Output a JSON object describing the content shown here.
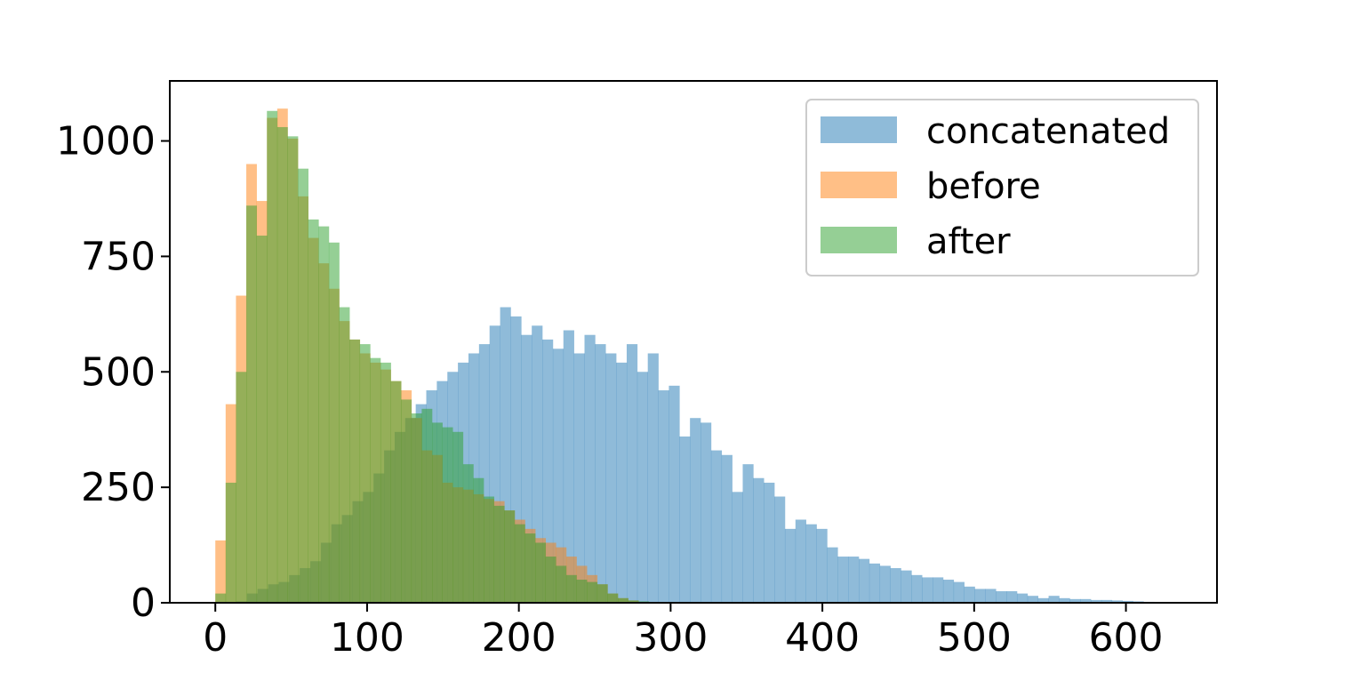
{
  "chart_data": {
    "type": "bar",
    "title": "",
    "xlabel": "",
    "ylabel": "",
    "xlim": [
      -30,
      660
    ],
    "ylim": [
      0,
      1130
    ],
    "bin_width": 6.8,
    "x_ticks": [
      {
        "value": 0,
        "label": "0"
      },
      {
        "value": 100,
        "label": "100"
      },
      {
        "value": 200,
        "label": "200"
      },
      {
        "value": 300,
        "label": "300"
      },
      {
        "value": 400,
        "label": "400"
      },
      {
        "value": 500,
        "label": "500"
      },
      {
        "value": 600,
        "label": "600"
      }
    ],
    "y_ticks": [
      {
        "value": 0,
        "label": "0"
      },
      {
        "value": 250,
        "label": "250"
      },
      {
        "value": 500,
        "label": "500"
      },
      {
        "value": 750,
        "label": "750"
      },
      {
        "value": 1000,
        "label": "1000"
      }
    ],
    "grid": false,
    "legend_position": "top-right",
    "series": [
      {
        "name": "concatenated",
        "color": "#1f77b4",
        "alpha": 0.5,
        "start": 0,
        "bin_width": 6.95,
        "values": [
          0,
          1,
          3,
          20,
          30,
          40,
          45,
          60,
          75,
          90,
          130,
          170,
          190,
          220,
          240,
          280,
          330,
          370,
          400,
          430,
          460,
          480,
          500,
          520,
          540,
          560,
          600,
          640,
          620,
          580,
          600,
          570,
          550,
          590,
          540,
          580,
          560,
          540,
          520,
          560,
          500,
          540,
          460,
          470,
          360,
          400,
          390,
          330,
          320,
          240,
          300,
          270,
          260,
          230,
          160,
          180,
          170,
          160,
          120,
          100,
          100,
          95,
          85,
          80,
          75,
          70,
          60,
          55,
          55,
          50,
          45,
          35,
          30,
          30,
          25,
          25,
          20,
          15,
          10,
          15,
          10,
          8,
          8,
          6,
          6,
          5,
          4,
          3,
          2,
          1
        ]
      },
      {
        "name": "before",
        "color": "#ff7f0e",
        "alpha": 0.5,
        "start": 0,
        "bin_width": 6.8,
        "values": [
          135,
          430,
          665,
          950,
          870,
          1050,
          1070,
          1005,
          880,
          790,
          735,
          680,
          610,
          570,
          540,
          520,
          505,
          480,
          460,
          400,
          330,
          320,
          260,
          250,
          245,
          235,
          225,
          220,
          200,
          180,
          160,
          140,
          130,
          120,
          100,
          80,
          60,
          40,
          20,
          10,
          5,
          2,
          1,
          0,
          0,
          0,
          0,
          0,
          0,
          0
        ]
      },
      {
        "name": "after",
        "color": "#2ca02c",
        "alpha": 0.5,
        "start": 0,
        "bin_width": 6.8,
        "values": [
          20,
          260,
          500,
          860,
          795,
          1065,
          1030,
          1010,
          940,
          830,
          815,
          780,
          640,
          570,
          560,
          530,
          520,
          480,
          440,
          410,
          420,
          390,
          380,
          370,
          300,
          270,
          230,
          210,
          200,
          170,
          150,
          130,
          100,
          80,
          60,
          50,
          45,
          40,
          20,
          10,
          5,
          3,
          1,
          0,
          0,
          0,
          0,
          0,
          0,
          0
        ]
      }
    ]
  }
}
